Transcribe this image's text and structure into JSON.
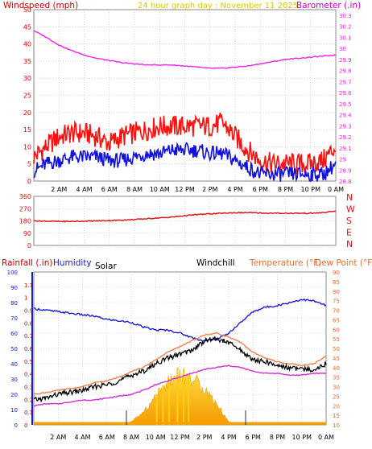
{
  "header": {
    "left_title": "Windspeed (mph)",
    "center_title": "24 hour graph day : November 11 2025",
    "right_title": "Barometer (.in)"
  },
  "colors": {
    "windspeed": "#e00000",
    "gust_line": "#ff1010",
    "wind_avg": "#1010e0",
    "barometer": "#ee22ee",
    "direction": "#dd1111",
    "title_yellow": "#e8d800",
    "rainfall": "#cc0000",
    "humidity": "#1a1ad0",
    "solar": "#000000",
    "windchill": "#000000",
    "temperature": "#f08050",
    "dewpoint": "#d030d0",
    "solar_fill_top": "#ffd700",
    "solar_fill_bottom": "#f7a000",
    "grid": "#bbbbbb",
    "frame": "#808080"
  },
  "time_axis": [
    "2 AM",
    "4 AM",
    "6 AM",
    "8 AM",
    "10 AM",
    "12 PM",
    "2 PM",
    "4 PM",
    "6 PM",
    "8 PM",
    "10 PM",
    "0 AM"
  ],
  "chart_data": [
    {
      "type": "line",
      "title": "24 hour graph day : November 11 2025",
      "ylabel": "Windspeed (mph)",
      "y2label": "Barometer (.in)",
      "ylim": [
        0,
        50
      ],
      "y_ticks": [
        0,
        5,
        10,
        15,
        20,
        25,
        30,
        35,
        40,
        45,
        50
      ],
      "y2lim": [
        28.8,
        30.35
      ],
      "y2_ticks": [
        "28.8",
        "28.9",
        "29",
        "29.1",
        "29.2",
        "29.3",
        "29.4",
        "29.5",
        "29.6",
        "29.7",
        "29.8",
        "29.9",
        "30",
        "30.1",
        "30.2",
        "30.3"
      ],
      "x_hours": [
        0,
        1,
        2,
        3,
        4,
        5,
        6,
        7,
        8,
        9,
        10,
        11,
        12,
        13,
        14,
        15,
        16,
        17,
        18,
        19,
        20,
        21,
        22,
        23,
        24
      ],
      "series": [
        {
          "name": "Windspeed (mph)",
          "axis": "left",
          "values": [
            7,
            10,
            13,
            14,
            14,
            13,
            11,
            13,
            14,
            15,
            16,
            16,
            16,
            16,
            16,
            17,
            13,
            9,
            6,
            5,
            5,
            5,
            5,
            6,
            10
          ]
        },
        {
          "name": "",
          "axis": "left",
          "values": [
            3,
            5,
            6,
            7,
            7,
            7,
            6,
            6,
            7,
            8,
            8,
            9,
            9,
            9,
            8,
            8,
            6,
            4,
            2,
            2,
            2,
            2,
            2,
            2,
            5
          ]
        },
        {
          "name": "Barometer (.in)",
          "axis": "right",
          "values": [
            30.16,
            30.1,
            30.03,
            29.98,
            29.94,
            29.91,
            29.89,
            29.87,
            29.86,
            29.85,
            29.85,
            29.85,
            29.84,
            29.83,
            29.82,
            29.82,
            29.83,
            29.84,
            29.86,
            29.88,
            29.9,
            29.91,
            29.92,
            29.93,
            29.94
          ]
        }
      ]
    },
    {
      "type": "line",
      "title": "",
      "ylabel": "",
      "ylim": [
        0,
        360
      ],
      "y_ticks": [
        0,
        90,
        180,
        270,
        360
      ],
      "y2_labels": [
        "N",
        "W",
        "S",
        "E",
        "N"
      ],
      "x_hours": [
        0,
        1,
        2,
        3,
        4,
        5,
        6,
        7,
        8,
        9,
        10,
        11,
        12,
        13,
        14,
        15,
        16,
        17,
        18,
        19,
        20,
        21,
        22,
        23,
        24
      ],
      "series": [
        {
          "name": "",
          "values": [
            180,
            178,
            176,
            176,
            178,
            180,
            182,
            186,
            190,
            196,
            202,
            208,
            218,
            226,
            232,
            236,
            240,
            240,
            238,
            236,
            236,
            236,
            236,
            240,
            252
          ]
        }
      ]
    },
    {
      "type": "line",
      "title": "",
      "left_labels": [
        "Rainfall (.in)",
        "Humidity",
        "Solar"
      ],
      "right_labels": [
        "Windchill",
        "Temperature (°F)",
        "Dew Point (°F)"
      ],
      "rain_ylim": [
        0,
        1.2
      ],
      "rain_ticks": [
        "0",
        "0.1",
        "0.2",
        "0.3",
        "0.4",
        "0.5",
        "0.6",
        "0.7",
        "0.8",
        "0.9",
        "1",
        "1.1"
      ],
      "hum_ylim": [
        0,
        100
      ],
      "hum_ticks": [
        0,
        10,
        20,
        30,
        40,
        50,
        60,
        70,
        80,
        90,
        100
      ],
      "temp_ylim": [
        10,
        90
      ],
      "temp_ticks": [
        10,
        15,
        20,
        25,
        30,
        35,
        40,
        45,
        50,
        55,
        60,
        65,
        70,
        75,
        80,
        85,
        90
      ],
      "x_hours": [
        0,
        1,
        2,
        3,
        4,
        5,
        6,
        7,
        8,
        9,
        10,
        11,
        12,
        13,
        14,
        15,
        16,
        17,
        18,
        19,
        20,
        21,
        22,
        23,
        24
      ],
      "series": [
        {
          "name": "Humidity",
          "axis": "humidity",
          "values": [
            76,
            75,
            74,
            73,
            72,
            71,
            69,
            68,
            67,
            64,
            62,
            62,
            60,
            57,
            55,
            56,
            60,
            67,
            74,
            77,
            78,
            80,
            82,
            81,
            78
          ]
        },
        {
          "name": "Windchill",
          "axis": "temperature",
          "values": [
            23,
            24,
            26,
            27,
            28,
            30,
            31,
            33,
            36,
            38,
            42,
            45,
            47,
            49,
            54,
            55,
            53,
            49,
            44,
            43,
            41,
            40,
            39,
            39,
            42
          ]
        },
        {
          "name": "Temperature (°F)",
          "axis": "temperature",
          "values": [
            26,
            27,
            28,
            29,
            30,
            32,
            33,
            35,
            38,
            40,
            44,
            48,
            51,
            54,
            57,
            58,
            56,
            53,
            48,
            45,
            43,
            42,
            41,
            42,
            46
          ]
        },
        {
          "name": "Dew Point (°F)",
          "axis": "temperature",
          "values": [
            20,
            21,
            21,
            22,
            23,
            23,
            24,
            25,
            26,
            28,
            31,
            33,
            35,
            37,
            39,
            40,
            41,
            40,
            38,
            37,
            37,
            36,
            36,
            37,
            37
          ]
        },
        {
          "name": "Solar",
          "axis": "humidity",
          "values": [
            0,
            0,
            0,
            0,
            0,
            0,
            0,
            0,
            2,
            8,
            18,
            28,
            33,
            30,
            24,
            14,
            2,
            0,
            0,
            0,
            0,
            0,
            0,
            0,
            0
          ]
        },
        {
          "name": "Rainfall (.in)",
          "axis": "rain",
          "values": [
            0,
            0,
            0,
            0,
            0,
            0,
            0,
            0,
            0,
            0,
            0,
            0,
            0,
            0,
            0,
            0,
            0,
            0,
            0,
            0,
            0,
            0,
            0,
            0,
            0
          ]
        }
      ]
    }
  ]
}
